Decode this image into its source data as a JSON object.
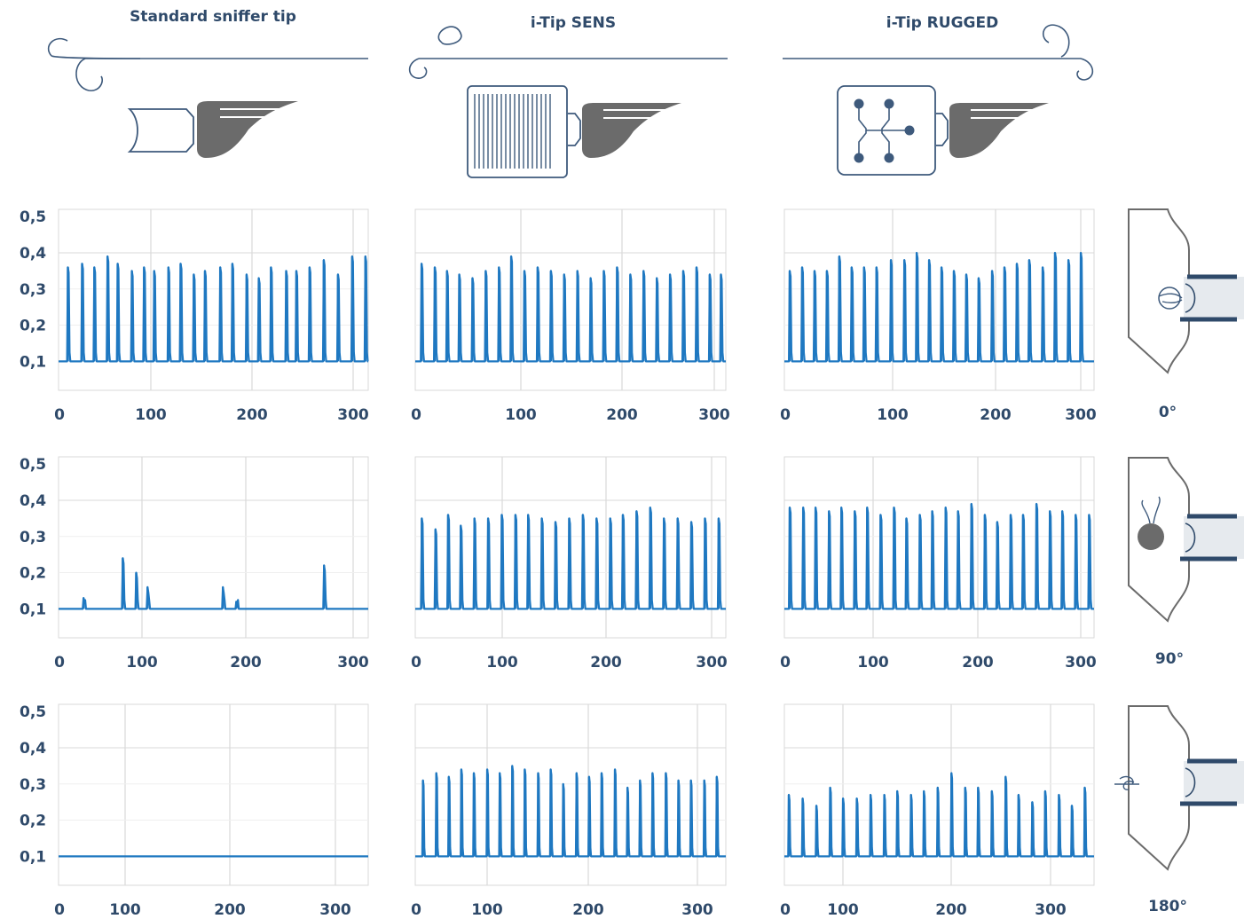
{
  "colors": {
    "series": "#1f78c1",
    "grid": "#d9d9d9",
    "label": "#2f4a6a",
    "line_art": "#3e5a7c",
    "grip": "#6b6b6b"
  },
  "columns": [
    {
      "title": "Standard sniffer tip"
    },
    {
      "title": "i-Tip SENS"
    },
    {
      "title": "i-Tip RUGGED"
    }
  ],
  "angles": [
    "0°",
    "90°",
    "180°"
  ],
  "chart_data": [
    {
      "type": "line",
      "row": 0,
      "col": 0,
      "y_ticks": [
        "0,1",
        "0,2",
        "0,3",
        "0,4",
        "0,5"
      ],
      "x_ticks": [
        "0",
        "100",
        "200",
        "300"
      ],
      "ylim": [
        0.02,
        0.52
      ],
      "xlim": [
        0,
        305
      ],
      "baseline": 0.1,
      "peaks_x": [
        10,
        24,
        36,
        49,
        59,
        73,
        85,
        95,
        109,
        121,
        134,
        145,
        160,
        172,
        186,
        198,
        210,
        225,
        235,
        248,
        262,
        276,
        290,
        303
      ],
      "peaks_y": [
        0.36,
        0.37,
        0.36,
        0.39,
        0.37,
        0.35,
        0.36,
        0.35,
        0.36,
        0.37,
        0.34,
        0.35,
        0.36,
        0.37,
        0.34,
        0.33,
        0.36,
        0.35,
        0.35,
        0.36,
        0.38,
        0.34,
        0.39,
        0.39
      ]
    },
    {
      "type": "line",
      "row": 0,
      "col": 1,
      "y_ticks": [
        "0,1",
        "0,2",
        "0,3",
        "0,4",
        "0,5"
      ],
      "x_ticks": [
        "0",
        "100",
        "200",
        "300"
      ],
      "ylim": [
        0.02,
        0.52
      ],
      "xlim": [
        0,
        305
      ],
      "baseline": 0.1,
      "peaks_x": [
        7,
        20,
        32,
        44,
        57,
        70,
        83,
        95,
        108,
        121,
        134,
        147,
        160,
        173,
        186,
        199,
        212,
        225,
        238,
        251,
        264,
        277,
        290,
        301
      ],
      "peaks_y": [
        0.37,
        0.36,
        0.35,
        0.34,
        0.33,
        0.35,
        0.36,
        0.39,
        0.35,
        0.36,
        0.35,
        0.34,
        0.35,
        0.33,
        0.35,
        0.36,
        0.34,
        0.35,
        0.33,
        0.34,
        0.35,
        0.36,
        0.34,
        0.34
      ]
    },
    {
      "type": "line",
      "row": 0,
      "col": 2,
      "y_ticks": [
        "0,1",
        "0,2",
        "0,3",
        "0,4",
        "0,5"
      ],
      "x_ticks": [
        "0",
        "100",
        "200",
        "300"
      ],
      "ylim": [
        0.02,
        0.52
      ],
      "xlim": [
        0,
        300
      ],
      "baseline": 0.1,
      "peaks_x": [
        6,
        18,
        30,
        42,
        54,
        66,
        78,
        90,
        104,
        117,
        129,
        141,
        153,
        165,
        177,
        189,
        202,
        214,
        226,
        238,
        251,
        263,
        276,
        288
      ],
      "peaks_y": [
        0.35,
        0.36,
        0.35,
        0.35,
        0.39,
        0.36,
        0.36,
        0.36,
        0.38,
        0.38,
        0.4,
        0.38,
        0.36,
        0.35,
        0.34,
        0.33,
        0.35,
        0.36,
        0.37,
        0.38,
        0.36,
        0.4,
        0.38,
        0.4
      ]
    },
    {
      "type": "line",
      "row": 1,
      "col": 0,
      "y_ticks": [
        "0,1",
        "0,2",
        "0,3",
        "0,4",
        "0,5"
      ],
      "x_ticks": [
        "0",
        "100",
        "200",
        "300"
      ],
      "ylim": [
        0.02,
        0.52
      ],
      "xlim": [
        0,
        300
      ],
      "baseline": 0.1,
      "peaks_x": [
        25,
        63,
        76,
        87,
        160,
        173,
        258
      ],
      "peaks_y": [
        0.13,
        0.24,
        0.2,
        0.16,
        0.16,
        0.12,
        0.22
      ]
    },
    {
      "type": "line",
      "row": 1,
      "col": 1,
      "y_ticks": [
        "0,1",
        "0,2",
        "0,3",
        "0,4",
        "0,5"
      ],
      "x_ticks": [
        "0",
        "100",
        "200",
        "300"
      ],
      "ylim": [
        0.02,
        0.52
      ],
      "xlim": [
        0,
        295
      ],
      "baseline": 0.1,
      "peaks_x": [
        7,
        20,
        32,
        44,
        57,
        70,
        83,
        96,
        108,
        121,
        134,
        147,
        160,
        173,
        186,
        198,
        211,
        224,
        237,
        250,
        263,
        276,
        289
      ],
      "peaks_y": [
        0.35,
        0.32,
        0.36,
        0.33,
        0.35,
        0.35,
        0.36,
        0.36,
        0.36,
        0.35,
        0.34,
        0.35,
        0.36,
        0.35,
        0.35,
        0.36,
        0.37,
        0.38,
        0.35,
        0.35,
        0.34,
        0.35,
        0.35
      ]
    },
    {
      "type": "line",
      "row": 1,
      "col": 2,
      "y_ticks": [
        "0,1",
        "0,2",
        "0,3",
        "0,4",
        "0,5"
      ],
      "x_ticks": [
        "0",
        "100",
        "200",
        "300"
      ],
      "ylim": [
        0.02,
        0.52
      ],
      "xlim": [
        0,
        300
      ],
      "baseline": 0.1,
      "peaks_x": [
        6,
        19,
        31,
        44,
        56,
        69,
        81,
        94,
        107,
        119,
        132,
        144,
        157,
        169,
        182,
        195,
        207,
        220,
        232,
        245,
        258,
        270,
        283,
        296
      ],
      "peaks_y": [
        0.38,
        0.38,
        0.38,
        0.37,
        0.38,
        0.37,
        0.38,
        0.36,
        0.38,
        0.35,
        0.36,
        0.37,
        0.38,
        0.37,
        0.39,
        0.36,
        0.34,
        0.36,
        0.36,
        0.39,
        0.37,
        0.37,
        0.36,
        0.36
      ]
    },
    {
      "type": "line",
      "row": 2,
      "col": 0,
      "y_ticks": [
        "0,1",
        "0,2",
        "0,3",
        "0,4",
        "0,5"
      ],
      "x_ticks": [
        "0",
        "100",
        "200",
        "300"
      ],
      "ylim": [
        0.02,
        0.52
      ],
      "xlim": [
        0,
        370
      ],
      "baseline": 0.1,
      "peaks_x": [],
      "peaks_y": []
    },
    {
      "type": "line",
      "row": 2,
      "col": 1,
      "y_ticks": [
        "0,1",
        "0,2",
        "0,3",
        "0,4",
        "0,5"
      ],
      "x_ticks": [
        "0",
        "100",
        "200",
        "300"
      ],
      "ylim": [
        0.02,
        0.52
      ],
      "xlim": [
        0,
        372
      ],
      "baseline": 0.1,
      "peaks_x": [
        10,
        26,
        41,
        56,
        71,
        87,
        102,
        117,
        132,
        148,
        163,
        178,
        194,
        209,
        224,
        240,
        255,
        270,
        285,
        301,
        316,
        331,
        347,
        362
      ],
      "peaks_y": [
        0.31,
        0.33,
        0.32,
        0.34,
        0.33,
        0.34,
        0.33,
        0.35,
        0.34,
        0.33,
        0.34,
        0.3,
        0.33,
        0.32,
        0.33,
        0.34,
        0.29,
        0.31,
        0.33,
        0.33,
        0.31,
        0.31,
        0.31,
        0.32
      ]
    },
    {
      "type": "line",
      "row": 2,
      "col": 2,
      "y_ticks": [
        "0,1",
        "0,2",
        "0,3",
        "0,4",
        "0,5"
      ],
      "x_ticks": [
        "0",
        "100",
        "200",
        "300"
      ],
      "ylim": [
        0.02,
        0.52
      ],
      "xlim": [
        0,
        360
      ],
      "baseline": 0.1,
      "peaks_x": [
        6,
        22,
        38,
        54,
        69,
        85,
        101,
        117,
        132,
        148,
        163,
        179,
        195,
        211,
        226,
        242,
        258,
        273,
        289,
        304,
        320,
        335,
        350
      ],
      "peaks_y": [
        0.27,
        0.26,
        0.24,
        0.29,
        0.26,
        0.26,
        0.27,
        0.27,
        0.28,
        0.27,
        0.28,
        0.29,
        0.33,
        0.29,
        0.29,
        0.28,
        0.32,
        0.27,
        0.25,
        0.28,
        0.27,
        0.24,
        0.29
      ]
    }
  ]
}
